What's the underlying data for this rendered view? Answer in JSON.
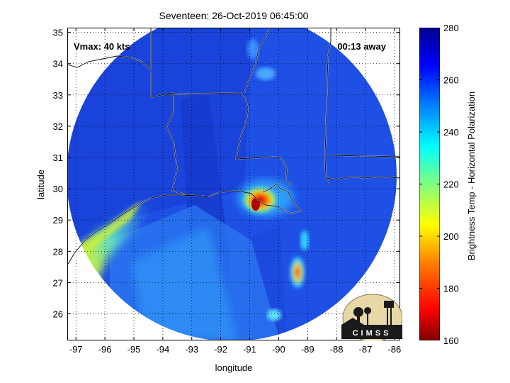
{
  "header": {
    "title": "Seventeen: 26-Oct-2019 06:45:00"
  },
  "overlays": {
    "vmax": "Vmax: 40 kts",
    "time_away": "00:13 away"
  },
  "axes": {
    "xlabel": "longitude",
    "ylabel": "latitude",
    "xticks": [
      "-97",
      "-96",
      "-95",
      "-94",
      "-93",
      "-92",
      "-91",
      "-90",
      "-89",
      "-88",
      "-87",
      "-86"
    ],
    "yticks": [
      "26",
      "27",
      "28",
      "29",
      "30",
      "31",
      "32",
      "33",
      "34",
      "35"
    ],
    "xlim": [
      -97.3,
      -85.8
    ],
    "ylim": [
      25.15,
      35.15
    ]
  },
  "colorbar": {
    "label": "Brightness Temp - Horizontal Polarization",
    "ticks": [
      "280",
      "260",
      "240",
      "220",
      "200",
      "180",
      "160"
    ],
    "range": [
      160,
      280
    ],
    "colors": [
      "#7f0000",
      "#ff0000",
      "#ff8000",
      "#ffff00",
      "#80ff80",
      "#00ffff",
      "#0080ff",
      "#0000ff",
      "#00008f"
    ]
  },
  "logo": {
    "text": "CIMSS"
  },
  "map": {
    "swath_center_lon": -91.45,
    "swath_center_lat": 30.1,
    "storm_lon": -90.9,
    "storm_lat": 29.55,
    "storm_temp": 178
  }
}
